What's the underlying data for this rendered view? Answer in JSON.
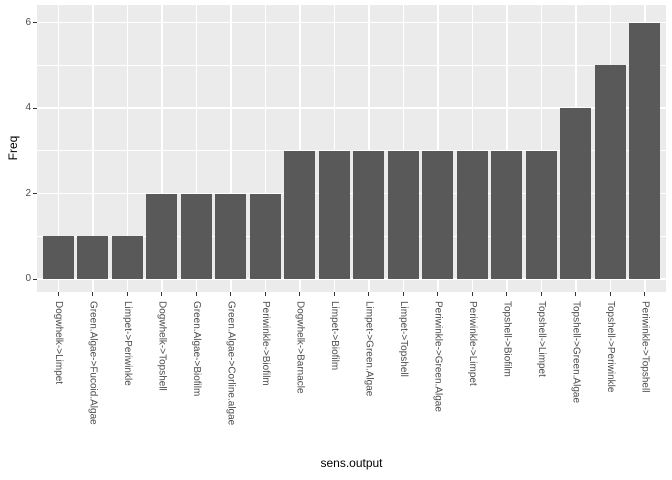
{
  "chart_data": {
    "type": "bar",
    "title": "",
    "xlabel": "sens.output",
    "ylabel": "Freq",
    "categories": [
      "Dogwhelk->Limpet",
      "Green.Algae->Fucoid.Algae",
      "Limpet->Periwinkle",
      "Dogwhelk->Topshell",
      "Green.Algae->Biofilm",
      "Green.Algae->Corline.algae",
      "Periwinkle->Biofilm",
      "Dogwhelk->Barnacle",
      "Limpet->Biofilm",
      "Limpet->Green.Algae",
      "Limpet->Topshell",
      "Periwinkle->Green.Algae",
      "Periwinkle->Limpet",
      "Topshell->Biofilm",
      "Topshell->Limpet",
      "Topshell->Green.Algae",
      "Topshell->Periwinkle",
      "Periwinkle->Topshell"
    ],
    "values": [
      1,
      1,
      1,
      2,
      2,
      2,
      2,
      3,
      3,
      3,
      3,
      3,
      3,
      3,
      3,
      4,
      5,
      6
    ],
    "ylim": [
      0,
      6
    ],
    "yticks": [
      0,
      2,
      4,
      6
    ],
    "yticks_minor": [
      1,
      3,
      5
    ],
    "grid": true,
    "legend": "none",
    "bar_orientation": "vertical",
    "colors": {
      "bar": "#595959",
      "panel": "#EBEBEB",
      "grid": "#FFFFFF",
      "tick_text": "#4D4D4D",
      "tick_mark": "#333333",
      "axis_title": "#000000",
      "background": "#FFFFFF"
    }
  }
}
